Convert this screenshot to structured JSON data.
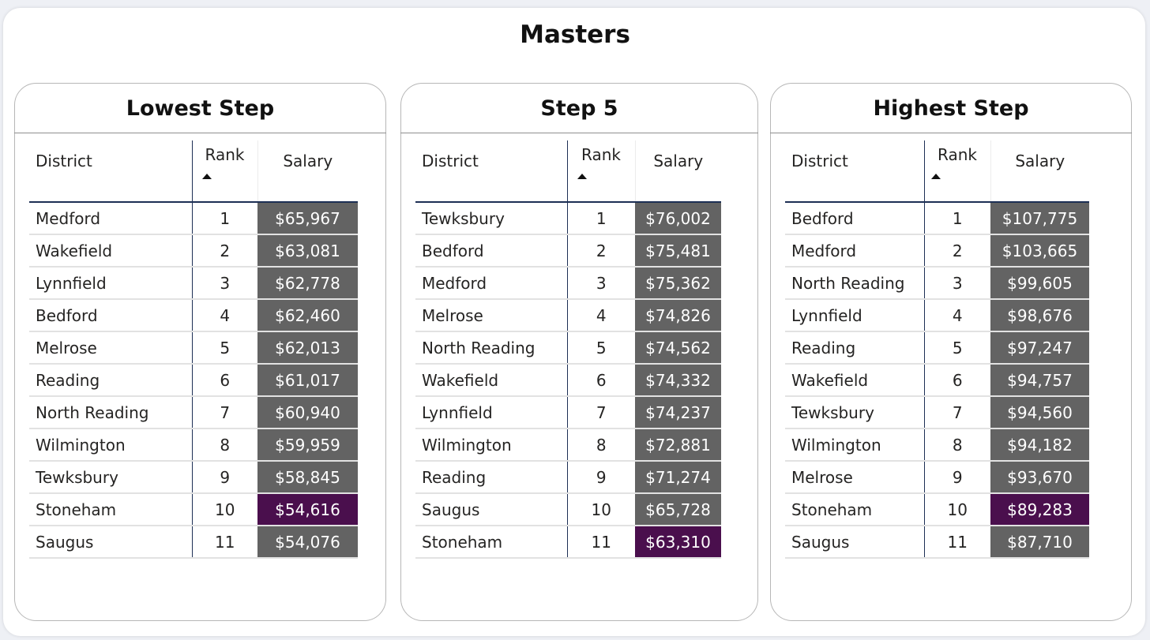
{
  "title": "Masters",
  "columns": {
    "district": "District",
    "rank": "Rank",
    "salary": "Salary"
  },
  "colors": {
    "salary_cell": "#636363",
    "highlight_cell": "#4a0f4d",
    "header_rule": "#1d2f54"
  },
  "highlight_district": "Stoneham",
  "tables": [
    {
      "title": "Lowest Step",
      "rows": [
        {
          "district": "Medford",
          "rank": "1",
          "salary": "$65,967"
        },
        {
          "district": "Wakefield",
          "rank": "2",
          "salary": "$63,081"
        },
        {
          "district": "Lynnfield",
          "rank": "3",
          "salary": "$62,778"
        },
        {
          "district": "Bedford",
          "rank": "4",
          "salary": "$62,460"
        },
        {
          "district": "Melrose",
          "rank": "5",
          "salary": "$62,013"
        },
        {
          "district": "Reading",
          "rank": "6",
          "salary": "$61,017"
        },
        {
          "district": "North Reading",
          "rank": "7",
          "salary": "$60,940"
        },
        {
          "district": "Wilmington",
          "rank": "8",
          "salary": "$59,959"
        },
        {
          "district": "Tewksbury",
          "rank": "9",
          "salary": "$58,845"
        },
        {
          "district": "Stoneham",
          "rank": "10",
          "salary": "$54,616"
        },
        {
          "district": "Saugus",
          "rank": "11",
          "salary": "$54,076"
        }
      ]
    },
    {
      "title": "Step 5",
      "rows": [
        {
          "district": "Tewksbury",
          "rank": "1",
          "salary": "$76,002"
        },
        {
          "district": "Bedford",
          "rank": "2",
          "salary": "$75,481"
        },
        {
          "district": "Medford",
          "rank": "3",
          "salary": "$75,362"
        },
        {
          "district": "Melrose",
          "rank": "4",
          "salary": "$74,826"
        },
        {
          "district": "North Reading",
          "rank": "5",
          "salary": "$74,562"
        },
        {
          "district": "Wakefield",
          "rank": "6",
          "salary": "$74,332"
        },
        {
          "district": "Lynnfield",
          "rank": "7",
          "salary": "$74,237"
        },
        {
          "district": "Wilmington",
          "rank": "8",
          "salary": "$72,881"
        },
        {
          "district": "Reading",
          "rank": "9",
          "salary": "$71,274"
        },
        {
          "district": "Saugus",
          "rank": "10",
          "salary": "$65,728"
        },
        {
          "district": "Stoneham",
          "rank": "11",
          "salary": "$63,310"
        }
      ]
    },
    {
      "title": "Highest Step",
      "rows": [
        {
          "district": "Bedford",
          "rank": "1",
          "salary": "$107,775"
        },
        {
          "district": "Medford",
          "rank": "2",
          "salary": "$103,665"
        },
        {
          "district": "North Reading",
          "rank": "3",
          "salary": "$99,605"
        },
        {
          "district": "Lynnfield",
          "rank": "4",
          "salary": "$98,676"
        },
        {
          "district": "Reading",
          "rank": "5",
          "salary": "$97,247"
        },
        {
          "district": "Wakefield",
          "rank": "6",
          "salary": "$94,757"
        },
        {
          "district": "Tewksbury",
          "rank": "7",
          "salary": "$94,560"
        },
        {
          "district": "Wilmington",
          "rank": "8",
          "salary": "$94,182"
        },
        {
          "district": "Melrose",
          "rank": "9",
          "salary": "$93,670"
        },
        {
          "district": "Stoneham",
          "rank": "10",
          "salary": "$89,283"
        },
        {
          "district": "Saugus",
          "rank": "11",
          "salary": "$87,710"
        }
      ]
    }
  ]
}
